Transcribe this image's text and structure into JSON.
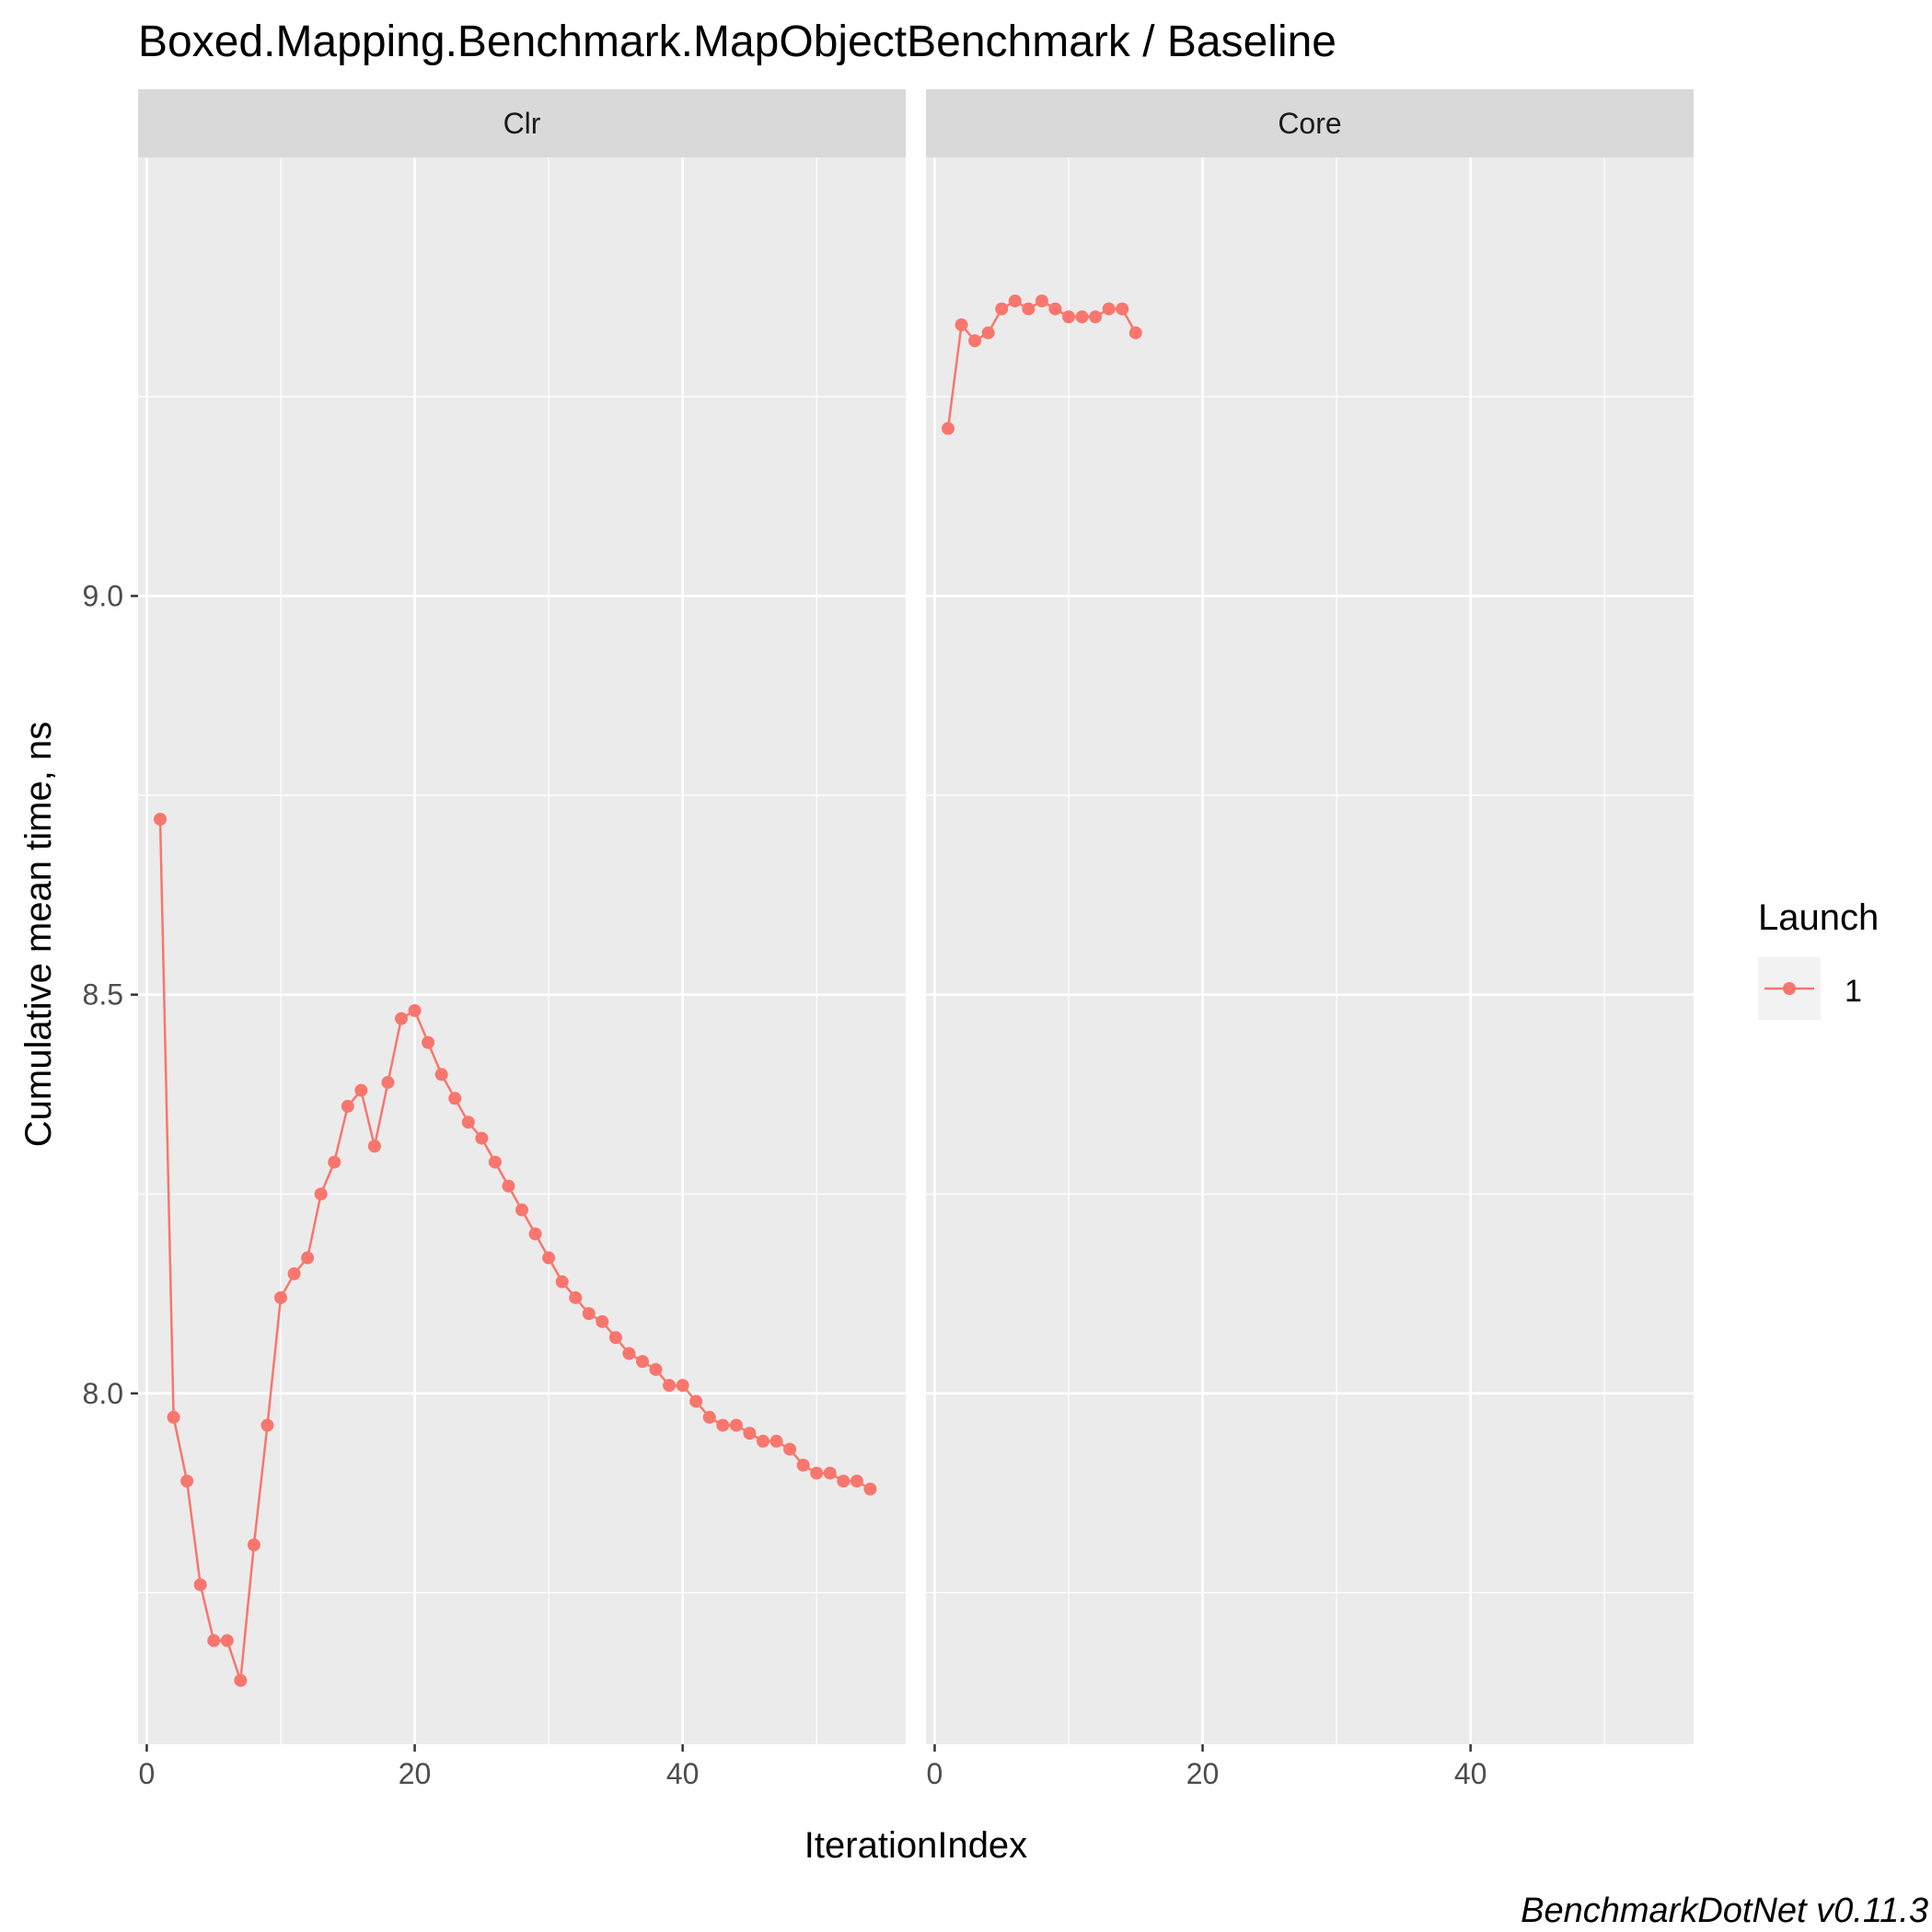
{
  "chart_data": {
    "type": "line",
    "title": "Boxed.Mapping.Benchmark.MapObjectBenchmark / Baseline",
    "xlabel": "IterationIndex",
    "ylabel": "Cumulative mean time, ns",
    "caption": "BenchmarkDotNet v0.11.3",
    "xlim": [
      -0.65,
      56.65
    ],
    "ylim": [
      7.56,
      9.55
    ],
    "x_ticks": [
      0,
      20,
      40
    ],
    "x_tick_labels": [
      "0",
      "20",
      "40"
    ],
    "y_ticks": [
      8.0,
      8.5,
      9.0
    ],
    "y_tick_labels": [
      "8.0",
      "8.5",
      "9.0"
    ],
    "grid": true,
    "legend": {
      "title": "Launch",
      "position": "right",
      "entries": [
        "1"
      ]
    },
    "series_color": "#F8766D",
    "facets": [
      {
        "name": "Clr",
        "series": [
          {
            "name": "1",
            "x": [
              1,
              2,
              3,
              4,
              5,
              6,
              7,
              8,
              9,
              10,
              11,
              12,
              13,
              14,
              15,
              16,
              17,
              18,
              19,
              20,
              21,
              22,
              23,
              24,
              25,
              26,
              27,
              28,
              29,
              30,
              31,
              32,
              33,
              34,
              35,
              36,
              37,
              38,
              39,
              40,
              41,
              42,
              43,
              44,
              45,
              46,
              47,
              48,
              49,
              50,
              51,
              52,
              53,
              54
            ],
            "y": [
              8.72,
              7.97,
              7.89,
              7.76,
              7.69,
              7.69,
              7.64,
              7.81,
              7.96,
              8.12,
              8.15,
              8.17,
              8.25,
              8.29,
              8.36,
              8.38,
              8.31,
              8.39,
              8.47,
              8.48,
              8.44,
              8.4,
              8.37,
              8.34,
              8.32,
              8.29,
              8.26,
              8.23,
              8.2,
              8.17,
              8.14,
              8.12,
              8.1,
              8.09,
              8.07,
              8.05,
              8.04,
              8.03,
              8.01,
              8.01,
              7.99,
              7.97,
              7.96,
              7.96,
              7.95,
              7.94,
              7.94,
              7.93,
              7.91,
              7.9,
              7.9,
              7.89,
              7.89,
              7.88
            ]
          }
        ]
      },
      {
        "name": "Core",
        "series": [
          {
            "name": "1",
            "x": [
              1,
              2,
              3,
              4,
              5,
              6,
              7,
              8,
              9,
              10,
              11,
              12,
              13,
              14,
              15
            ],
            "y": [
              9.21,
              9.34,
              9.32,
              9.33,
              9.36,
              9.37,
              9.36,
              9.37,
              9.36,
              9.35,
              9.35,
              9.35,
              9.36,
              9.36,
              9.33
            ]
          }
        ]
      }
    ]
  }
}
